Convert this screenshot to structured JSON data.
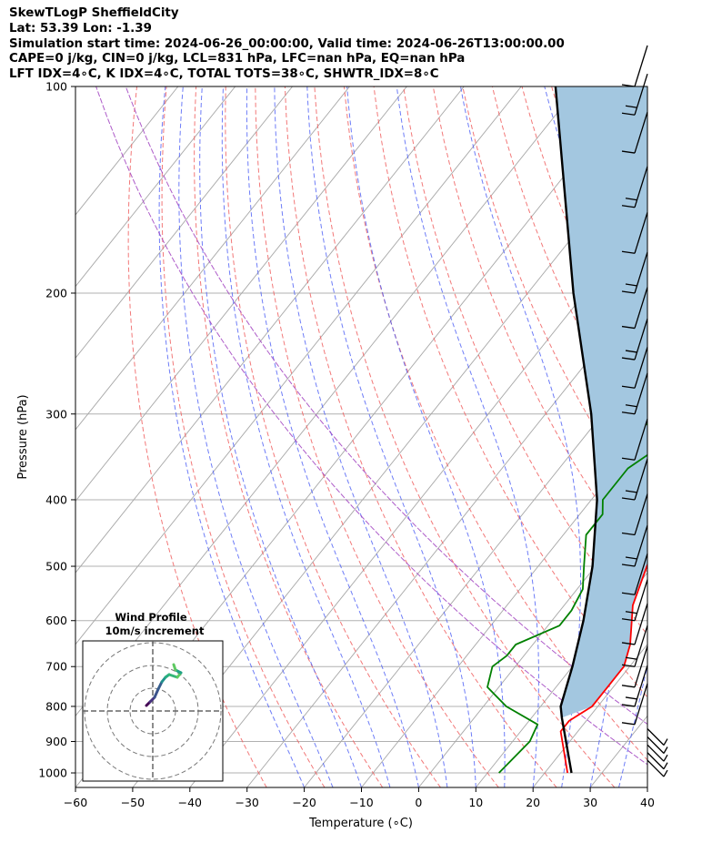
{
  "header": {
    "line1": "SkewTLogP SheffieldCity",
    "line2": "Lat: 53.39   Lon: -1.39",
    "line3": "Simulation start time: 2024-06-26_00:00:00, Valid time: 2024-06-26T13:00:00.00",
    "line4": "CAPE=0 j/kg, CIN=0 j/kg, LCL=831 hPa, LFC=nan hPa, EQ=nan hPa",
    "line5": "LFT IDX=4∘C, K IDX=4∘C, TOTAL TOTS=38∘C, SHWTR_IDX=8∘C"
  },
  "chart_data": {
    "type": "line",
    "xlabel": "Temperature (∘C)",
    "ylabel": "Pressure (hPa)",
    "xlim": [
      -60,
      40
    ],
    "ylim": [
      1050,
      100
    ],
    "y_scale": "log",
    "x_ticks": [
      -60,
      -50,
      -40,
      -30,
      -20,
      -10,
      0,
      10,
      20,
      30,
      40
    ],
    "y_ticks": [
      100,
      200,
      300,
      400,
      500,
      600,
      700,
      800,
      900,
      1000
    ],
    "grid": true,
    "series": [
      {
        "color": "#ff0000",
        "points": [
          [
            24,
            1000
          ],
          [
            17,
            870
          ],
          [
            17,
            840
          ],
          [
            19,
            800
          ],
          [
            19,
            750
          ],
          [
            19,
            700
          ],
          [
            17,
            650
          ],
          [
            12,
            570
          ],
          [
            9,
            500
          ],
          [
            7,
            450
          ],
          [
            3,
            380
          ],
          [
            0,
            330
          ],
          [
            -4,
            280
          ],
          [
            -8,
            250
          ],
          [
            -10,
            225
          ],
          [
            -9,
            200
          ],
          [
            -6,
            180
          ],
          [
            -3,
            165
          ],
          [
            -1,
            150
          ],
          [
            1,
            135
          ],
          [
            2,
            120
          ],
          [
            3,
            110
          ],
          [
            2,
            100
          ]
        ]
      },
      {
        "color": "#008000",
        "points": [
          [
            12,
            1000
          ],
          [
            13,
            900
          ],
          [
            12,
            850
          ],
          [
            4,
            800
          ],
          [
            -2,
            750
          ],
          [
            -4,
            700
          ],
          [
            -3,
            675
          ],
          [
            -3,
            650
          ],
          [
            2,
            610
          ],
          [
            2,
            580
          ],
          [
            1,
            540
          ],
          [
            -2,
            500
          ],
          [
            -6,
            450
          ],
          [
            -6,
            420
          ],
          [
            -8,
            400
          ],
          [
            -8,
            360
          ],
          [
            -5,
            330
          ],
          [
            -11,
            310
          ],
          [
            -12,
            280
          ],
          [
            -13,
            260
          ],
          [
            -14,
            240
          ],
          [
            -12,
            220
          ],
          [
            -12,
            200
          ],
          [
            -12,
            180
          ],
          [
            -12,
            170
          ],
          [
            -14,
            160
          ],
          [
            -18,
            150
          ],
          [
            -17,
            130
          ],
          [
            -12,
            120
          ],
          [
            -8,
            110
          ],
          [
            -5,
            100
          ]
        ]
      },
      {
        "color": "#000000",
        "points": [
          [
            24.7,
            1000
          ],
          [
            15.3,
            831
          ],
          [
            13.5,
            800
          ],
          [
            10,
            700
          ],
          [
            5.5,
            600
          ],
          [
            -0.5,
            500
          ],
          [
            -9,
            400
          ],
          [
            -22,
            300
          ],
          [
            -42,
            200
          ],
          [
            -74,
            100
          ]
        ]
      }
    ],
    "shaded_area": {
      "between": [
        "parcel",
        "temperature"
      ],
      "color": "#a3c7e0"
    },
    "reference_lines": [
      "dry adiabats",
      "moist adiabats",
      "mixing ratio lines",
      "skewed isotherms"
    ],
    "wind_barbs": {
      "side": "right",
      "pressures": [
        1000,
        975,
        950,
        925,
        900,
        850,
        800,
        750,
        700,
        650,
        600,
        550,
        500,
        450,
        400,
        350,
        300,
        275,
        250,
        225,
        200,
        175,
        150,
        125,
        110,
        100
      ]
    },
    "inset": {
      "title": "Wind Profile",
      "subtitle": "10m/s increment",
      "type": "hodograph",
      "rings": [
        10,
        20,
        30
      ]
    }
  }
}
